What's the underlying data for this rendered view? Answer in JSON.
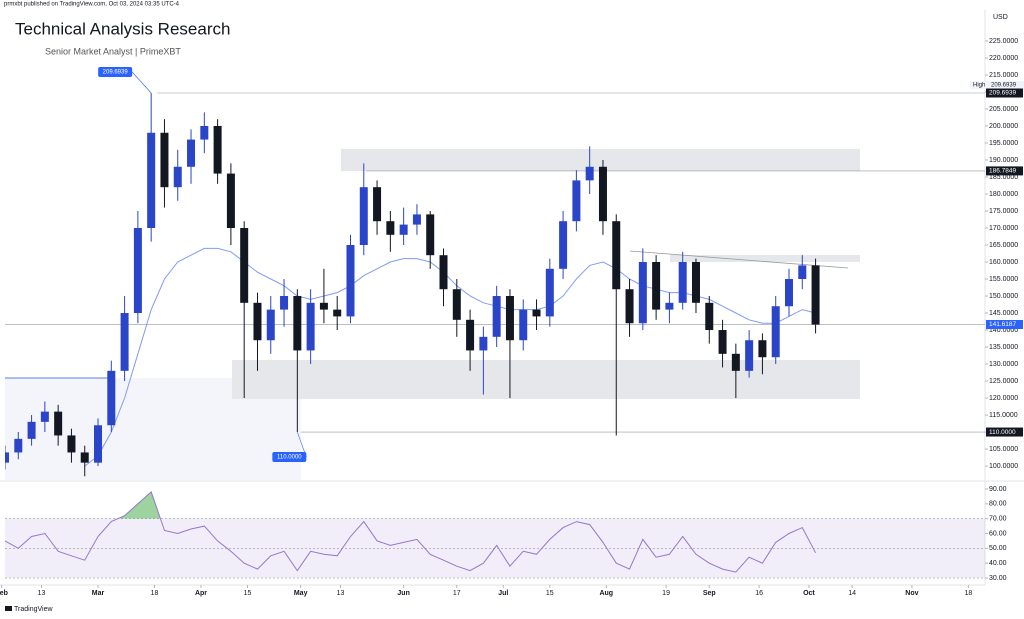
{
  "page": {
    "published": "prmxbt published on TradingView.com, Oct 03, 2024 03:35 UTC-4",
    "footer": "TradingView"
  },
  "chart_data": {
    "type": "candlestick",
    "title": "Technical Analysis Research",
    "subtitle": "Senior Market Analyst | PrimeXBT",
    "currency": "USD",
    "up_color": "#2b45c9",
    "down_color": "#131722",
    "ma_color": "#7f9cf5",
    "rsi_color": "#9575cd",
    "xlim": [
      "02-02",
      "11-23"
    ],
    "xticks": [
      {
        "value": "02-01",
        "label": "Feb"
      },
      {
        "value": "02-13",
        "label": "13"
      },
      {
        "value": "03-01",
        "label": "Mar"
      },
      {
        "value": "03-18",
        "label": "18"
      },
      {
        "value": "04-01",
        "label": "Apr"
      },
      {
        "value": "04-15",
        "label": "15"
      },
      {
        "value": "05-01",
        "label": "May"
      },
      {
        "value": "05-13",
        "label": "13"
      },
      {
        "value": "06-01",
        "label": "Jun"
      },
      {
        "value": "06-17",
        "label": "17"
      },
      {
        "value": "07-01",
        "label": "Jul"
      },
      {
        "value": "07-15",
        "label": "15"
      },
      {
        "value": "08-01",
        "label": "Aug"
      },
      {
        "value": "08-19",
        "label": "19"
      },
      {
        "value": "09-01",
        "label": "Sep"
      },
      {
        "value": "09-16",
        "label": "16"
      },
      {
        "value": "10-01",
        "label": "Oct"
      },
      {
        "value": "10-14",
        "label": "14"
      },
      {
        "value": "11-01",
        "label": "Nov"
      },
      {
        "value": "11-18",
        "label": "18"
      }
    ],
    "ylim": [
      95.9,
      234.1
    ],
    "yticks": [
      {
        "value": 100,
        "label": "100.0000"
      },
      {
        "value": 105,
        "label": "105.0000"
      },
      {
        "value": 110,
        "label": "110.0000"
      },
      {
        "value": 115,
        "label": "115.0000"
      },
      {
        "value": 120,
        "label": "120.0000"
      },
      {
        "value": 125,
        "label": "125.0000"
      },
      {
        "value": 130,
        "label": "130.0000"
      },
      {
        "value": 135,
        "label": "135.0000"
      },
      {
        "value": 140,
        "label": "140.0000"
      },
      {
        "value": 145,
        "label": "145.0000"
      },
      {
        "value": 150,
        "label": "150.0000"
      },
      {
        "value": 155,
        "label": "155.0000"
      },
      {
        "value": 160,
        "label": "160.0000"
      },
      {
        "value": 165,
        "label": "165.0000"
      },
      {
        "value": 170,
        "label": "170.0000"
      },
      {
        "value": 175,
        "label": "175.0000"
      },
      {
        "value": 180,
        "label": "180.0000"
      },
      {
        "value": 185,
        "label": "185.0000"
      },
      {
        "value": 190,
        "label": "190.0000"
      },
      {
        "value": 195,
        "label": "195.0000"
      },
      {
        "value": 200,
        "label": "200.0000"
      },
      {
        "value": 205,
        "label": "205.0000"
      },
      {
        "value": 210,
        "label": "210.0000"
      },
      {
        "value": 215,
        "label": "215.0000"
      },
      {
        "value": 220,
        "label": "220.0000"
      },
      {
        "value": 225,
        "label": "225.0000"
      }
    ],
    "candles": {
      "x": [
        "02-02",
        "02-06",
        "02-10",
        "02-14",
        "02-18",
        "02-22",
        "02-26",
        "03-01",
        "03-05",
        "03-09",
        "03-13",
        "03-17",
        "03-21",
        "03-25",
        "03-29",
        "04-02",
        "04-06",
        "04-10",
        "04-14",
        "04-18",
        "04-22",
        "04-26",
        "04-30",
        "05-04",
        "05-08",
        "05-12",
        "05-16",
        "05-20",
        "05-24",
        "05-28",
        "06-01",
        "06-05",
        "06-09",
        "06-13",
        "06-17",
        "06-21",
        "06-25",
        "06-29",
        "07-03",
        "07-07",
        "07-11",
        "07-15",
        "07-19",
        "07-23",
        "07-27",
        "07-31",
        "08-04",
        "08-08",
        "08-12",
        "08-16",
        "08-20",
        "08-24",
        "08-28",
        "09-01",
        "09-05",
        "09-09",
        "09-13",
        "09-17",
        "09-21",
        "09-25",
        "09-29",
        "10-03"
      ],
      "open": [
        101,
        104,
        108,
        113,
        116,
        109,
        104,
        101,
        112,
        128,
        145,
        170,
        198,
        182,
        188,
        196,
        200,
        186,
        170,
        148,
        137,
        146,
        150,
        134,
        148,
        146,
        144,
        165,
        182,
        172,
        168,
        171,
        174,
        162,
        152,
        143,
        134,
        138,
        150,
        137,
        146,
        144,
        158,
        172,
        184,
        188,
        172,
        152,
        142,
        160,
        146,
        148,
        160,
        148,
        140,
        133,
        128,
        137,
        132,
        147,
        155,
        159
      ],
      "high": [
        106,
        110,
        115,
        119,
        118,
        111,
        106,
        114,
        131,
        150,
        175,
        209.6939,
        202,
        193,
        199,
        204,
        202,
        189,
        172,
        151,
        150,
        155,
        152,
        152,
        158,
        150,
        168,
        189,
        184,
        175,
        176,
        177,
        175,
        164,
        155,
        146,
        141,
        153,
        152,
        149,
        149,
        161,
        175,
        187,
        194,
        190,
        174,
        155,
        164,
        162,
        151,
        163,
        161,
        150,
        143,
        136,
        140,
        139,
        150,
        158,
        162,
        161
      ],
      "low": [
        99,
        102,
        106,
        110,
        106,
        101,
        97,
        100,
        110,
        125,
        142,
        166,
        176,
        178,
        183,
        192,
        183,
        165,
        120,
        128,
        133,
        141,
        110,
        130,
        142,
        140,
        142,
        162,
        168,
        163,
        165,
        168,
        158,
        147,
        138,
        128,
        121,
        135,
        120,
        134,
        140,
        141,
        155,
        169,
        180,
        168,
        109,
        138,
        140,
        143,
        142,
        146,
        145,
        136,
        129,
        120,
        126,
        127,
        130,
        144,
        152,
        139
      ],
      "close": [
        104,
        108,
        113,
        116,
        109,
        104,
        101,
        112,
        128,
        145,
        170,
        198,
        182,
        188,
        196,
        200,
        186,
        170,
        148,
        137,
        146,
        150,
        134,
        148,
        146,
        144,
        165,
        182,
        172,
        168,
        171,
        174,
        162,
        152,
        143,
        134,
        138,
        150,
        137,
        146,
        144,
        158,
        172,
        184,
        188,
        172,
        152,
        142,
        160,
        146,
        148,
        160,
        148,
        140,
        133,
        128,
        137,
        132,
        147,
        155,
        159,
        141.6187
      ]
    },
    "ma": [
      null,
      null,
      null,
      null,
      null,
      null,
      100,
      103,
      110,
      120,
      133,
      146,
      155,
      160,
      162,
      164,
      164,
      163,
      160,
      157,
      155,
      153,
      150,
      149,
      150,
      151,
      153,
      156,
      158,
      160,
      161,
      161,
      160,
      157,
      153,
      150,
      148,
      147,
      146,
      146,
      146,
      147,
      150,
      155,
      159,
      160,
      158,
      155,
      153,
      152,
      151,
      151,
      150,
      149,
      147,
      145,
      143,
      142,
      142,
      144,
      146,
      145
    ],
    "annotations": [
      {
        "date": "03-17",
        "value": 209.6939,
        "label": "209.6939"
      },
      {
        "date": "04-30",
        "value": 110,
        "label": "110.0000"
      }
    ],
    "high_label": "High",
    "axis_tags": [
      {
        "value": 209.6939,
        "label": "209.6939",
        "color": "#131722"
      },
      {
        "value": 186.7849,
        "label": "186.7849",
        "color": "#131722"
      },
      {
        "value": 141.6187,
        "label": "141.6187",
        "color": "#2962ff"
      },
      {
        "value": 110,
        "label": "110.0000",
        "color": "#131722"
      }
    ],
    "rsi": {
      "values": [
        55,
        50,
        58,
        60,
        48,
        45,
        42,
        58,
        68,
        72,
        80,
        88,
        62,
        60,
        63,
        65,
        55,
        48,
        40,
        36,
        45,
        48,
        35,
        48,
        46,
        45,
        58,
        68,
        55,
        52,
        54,
        56,
        46,
        42,
        38,
        35,
        40,
        52,
        38,
        48,
        46,
        56,
        64,
        68,
        66,
        54,
        40,
        36,
        56,
        44,
        46,
        58,
        46,
        40,
        36,
        34,
        44,
        40,
        54,
        60,
        64,
        47
      ],
      "ylim": [
        25.3,
        94.7
      ],
      "yticks": [
        {
          "value": 30,
          "label": "30.00"
        },
        {
          "value": 40,
          "label": "40.00"
        },
        {
          "value": 50,
          "label": "50.00"
        },
        {
          "value": 60,
          "label": "60.00"
        },
        {
          "value": 70,
          "label": "70.00"
        },
        {
          "value": 80,
          "label": "80.00"
        },
        {
          "value": 90,
          "label": "90.00"
        }
      ],
      "band": [
        30,
        70
      ],
      "midline": 50
    }
  }
}
